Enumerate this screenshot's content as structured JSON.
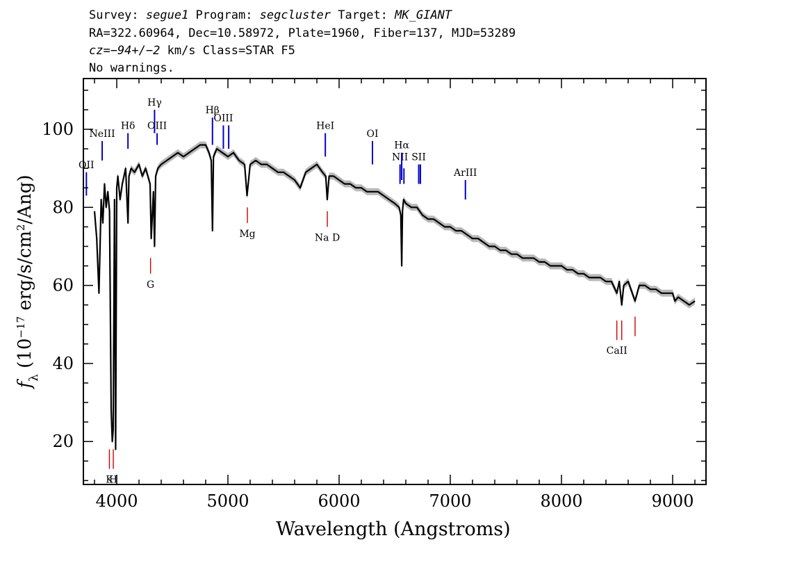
{
  "header": {
    "line1": {
      "survey_label": "Survey: ",
      "survey": "segue1",
      "program_label": " Program: ",
      "program": "segcluster",
      "target_label": " Target: ",
      "target": "MK_GIANT"
    },
    "line2": "RA=322.60964, Dec=10.58972, Plate=1960, Fiber=137, MJD=53289",
    "line3": {
      "cz": "cz=−94+/−2",
      "rest": " km/s Class=STAR F5"
    },
    "line4": "No warnings."
  },
  "chart_data": {
    "type": "line",
    "xlabel": "Wavelength (Angstroms)",
    "ylabel": "fλ (10⁻¹⁷ erg/s/cm²/Ang)",
    "xlim": [
      3700,
      9300
    ],
    "ylim": [
      9,
      113
    ],
    "xticks": [
      4000,
      5000,
      6000,
      7000,
      8000,
      9000
    ],
    "yticks": [
      20,
      40,
      60,
      80,
      100
    ],
    "grid": false,
    "series": [
      {
        "color": "#000000",
        "error_color": "#b8b8b8",
        "x": [
          3800,
          3820,
          3840,
          3860,
          3875,
          3890,
          3905,
          3920,
          3935,
          3950,
          3960,
          3968,
          3980,
          3990,
          4000,
          4010,
          4030,
          4050,
          4080,
          4101,
          4110,
          4130,
          4160,
          4200,
          4230,
          4260,
          4300,
          4310,
          4330,
          4340,
          4350,
          4370,
          4400,
          4450,
          4500,
          4550,
          4600,
          4650,
          4700,
          4750,
          4800,
          4830,
          4850,
          4861,
          4870,
          4900,
          4950,
          5000,
          5050,
          5100,
          5150,
          5172,
          5200,
          5250,
          5300,
          5350,
          5400,
          5450,
          5500,
          5550,
          5600,
          5650,
          5700,
          5750,
          5800,
          5850,
          5880,
          5893,
          5910,
          5950,
          6000,
          6050,
          6100,
          6150,
          6200,
          6250,
          6300,
          6350,
          6400,
          6450,
          6500,
          6540,
          6555,
          6563,
          6570,
          6580,
          6600,
          6650,
          6700,
          6750,
          6800,
          6850,
          6900,
          6950,
          7000,
          7050,
          7100,
          7150,
          7200,
          7250,
          7300,
          7350,
          7400,
          7450,
          7500,
          7550,
          7600,
          7650,
          7700,
          7750,
          7800,
          7850,
          7900,
          7950,
          8000,
          8050,
          8100,
          8150,
          8200,
          8250,
          8300,
          8350,
          8400,
          8450,
          8498,
          8520,
          8542,
          8560,
          8600,
          8662,
          8700,
          8750,
          8800,
          8850,
          8900,
          8950,
          9000,
          9020,
          9050,
          9100,
          9150,
          9200
        ],
        "y": [
          79,
          72,
          58,
          82,
          76,
          86,
          80,
          84,
          79,
          28,
          20,
          23,
          82,
          18,
          85,
          88,
          82,
          86,
          90,
          76,
          88,
          90,
          89,
          91,
          88,
          90,
          86,
          72,
          84,
          70,
          88,
          90,
          91,
          92,
          93,
          94,
          93,
          94,
          95,
          96,
          96,
          94,
          92,
          74,
          93,
          95,
          94,
          93,
          94,
          92,
          91,
          83,
          91,
          92,
          91,
          91,
          90,
          89,
          89,
          88,
          87,
          85,
          89,
          90,
          91,
          89,
          88,
          82,
          88,
          88,
          87,
          86,
          86,
          85,
          85,
          84,
          84,
          84,
          83,
          82,
          81,
          80,
          78,
          65,
          79,
          82,
          81,
          80,
          80,
          78,
          77,
          77,
          76,
          75,
          75,
          74,
          74,
          73,
          72,
          72,
          71,
          70,
          70,
          69,
          69,
          68,
          68,
          67,
          67,
          67,
          66,
          66,
          65,
          65,
          65,
          64,
          64,
          63,
          63,
          62,
          62,
          62,
          61,
          61,
          58,
          61,
          55,
          60,
          61,
          56,
          60,
          60,
          59,
          59,
          58,
          58,
          58,
          56,
          57,
          56,
          55,
          56
        ]
      }
    ],
    "lines": {
      "emission": [
        {
          "label": "OII",
          "wave": 3727,
          "y0": 83,
          "y1": 89
        },
        {
          "label": "NeIII",
          "wave": 3869,
          "y0": 92,
          "y1": 97
        },
        {
          "label": "Hδ",
          "wave": 4101,
          "y0": 95,
          "y1": 99
        },
        {
          "label": "Hγ",
          "wave": 4340,
          "y0": 99,
          "y1": 105
        },
        {
          "label": "OIII",
          "wave": 4363,
          "y0": 96,
          "y1": 99
        },
        {
          "label": "Hβ",
          "wave": 4861,
          "y0": 96,
          "y1": 103
        },
        {
          "label": "OIII",
          "wave": 4959,
          "y0": 95,
          "y1": 101
        },
        {
          "label": "",
          "wave": 5007,
          "y0": 95,
          "y1": 101
        },
        {
          "label": "HeI",
          "wave": 5876,
          "y0": 93,
          "y1": 99
        },
        {
          "label": "OI",
          "wave": 6300,
          "y0": 91,
          "y1": 97
        },
        {
          "label": "NII",
          "wave": 6548,
          "y0": 86,
          "y1": 91
        },
        {
          "label": "Hα",
          "wave": 6563,
          "y0": 87,
          "y1": 94
        },
        {
          "label": "",
          "wave": 6583,
          "y0": 86,
          "y1": 90
        },
        {
          "label": "SII",
          "wave": 6716,
          "y0": 86,
          "y1": 91
        },
        {
          "label": "",
          "wave": 6731,
          "y0": 86,
          "y1": 91
        },
        {
          "label": "ArIII",
          "wave": 7136,
          "y0": 82,
          "y1": 87
        }
      ],
      "absorption": [
        {
          "label": "K",
          "wave": 3934,
          "y0": 13,
          "y1": 18
        },
        {
          "label": "H",
          "wave": 3969,
          "y0": 13,
          "y1": 18
        },
        {
          "label": "G",
          "wave": 4304,
          "y0": 63,
          "y1": 67
        },
        {
          "label": "Mg",
          "wave": 5175,
          "y0": 76,
          "y1": 80
        },
        {
          "label": "Na D",
          "wave": 5894,
          "y0": 75,
          "y1": 79
        },
        {
          "label": "CaII",
          "wave": 8498,
          "y0": 46,
          "y1": 51
        },
        {
          "label": "",
          "wave": 8542,
          "y0": 46,
          "y1": 51
        },
        {
          "label": "",
          "wave": 8662,
          "y0": 47,
          "y1": 52
        }
      ],
      "emission_color": "#0000cc",
      "absorption_color": "#cc0000"
    }
  }
}
